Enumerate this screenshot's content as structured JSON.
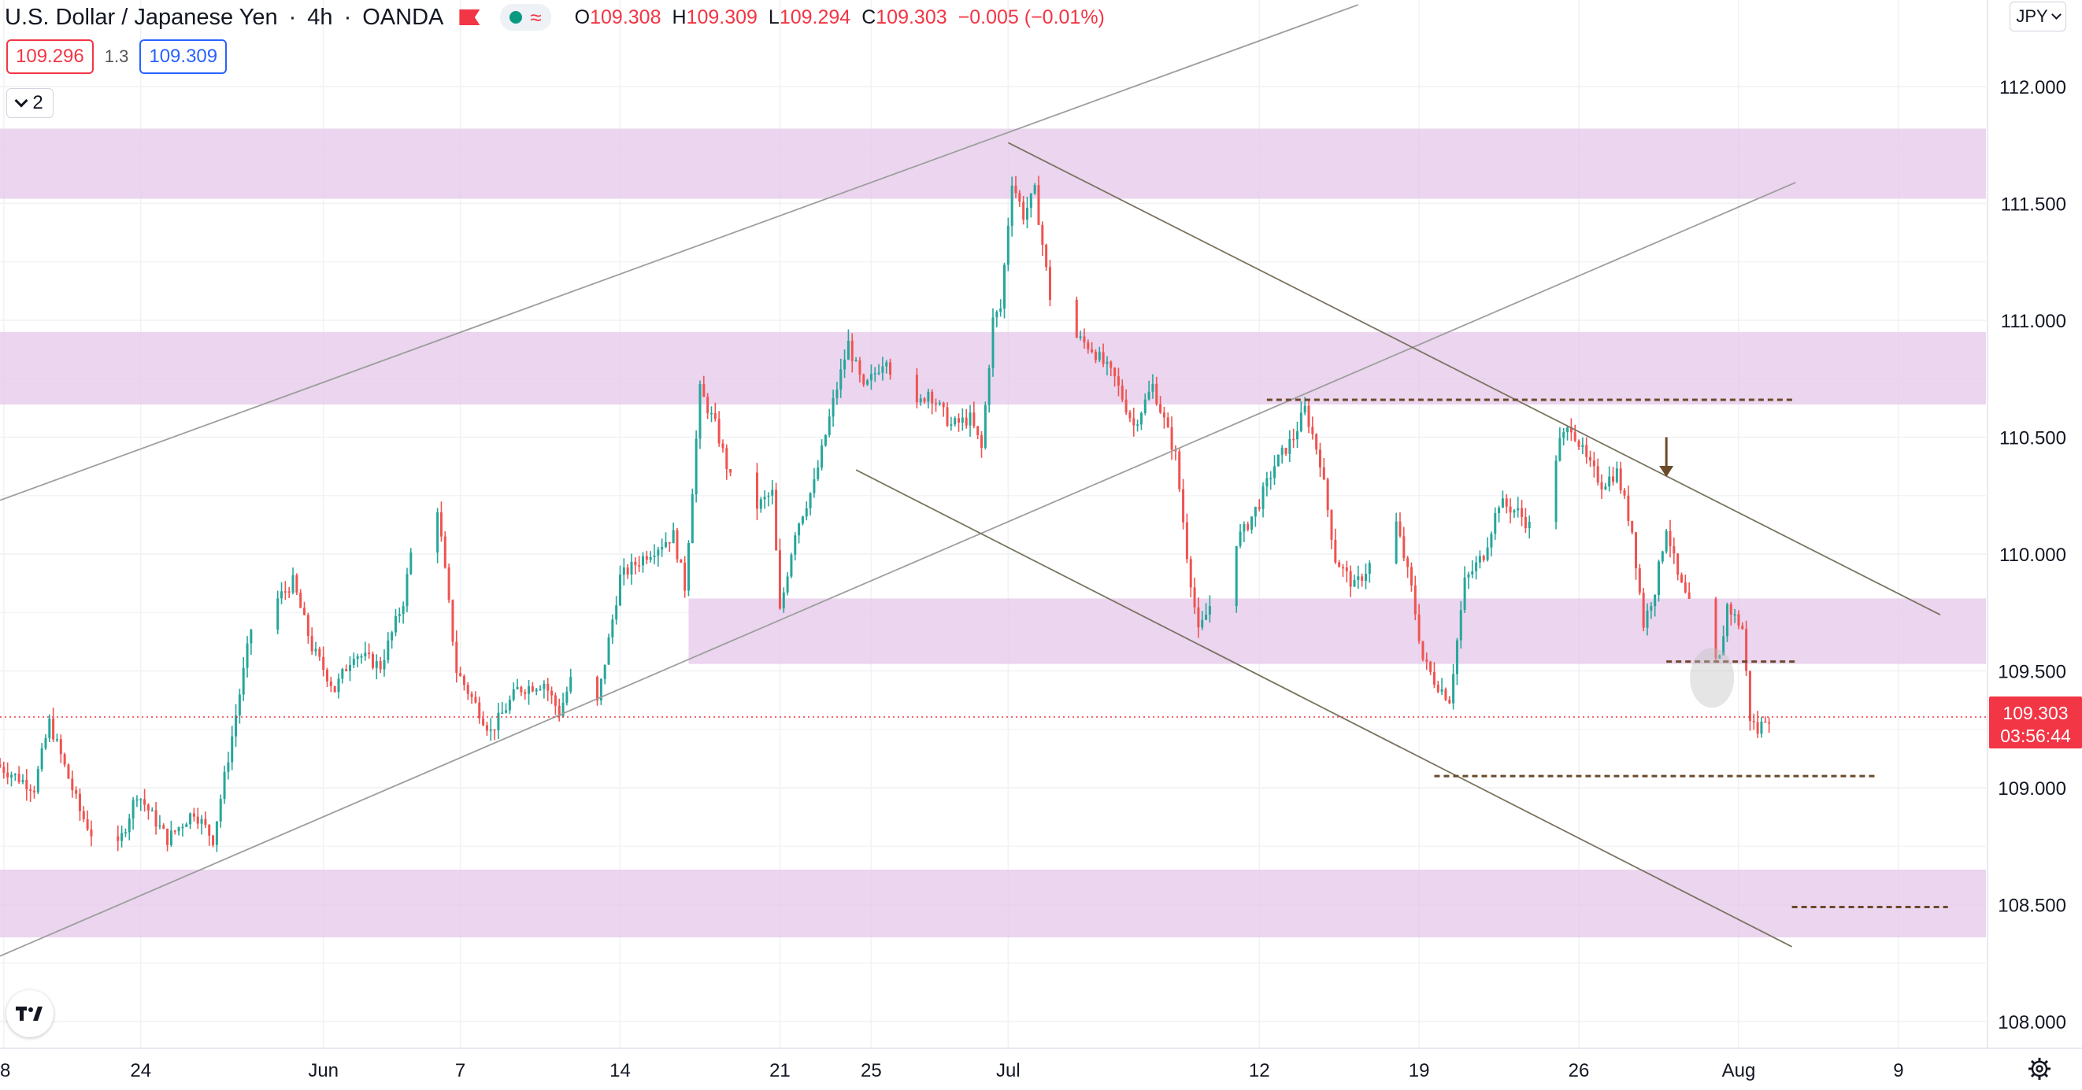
{
  "header": {
    "symbol": "U.S. Dollar / Japanese Yen",
    "interval": "4h",
    "broker": "OANDA",
    "open_label": "O",
    "open": "109.308",
    "high_label": "H",
    "high": "109.309",
    "low_label": "L",
    "low": "109.294",
    "close_label": "C",
    "close": "109.303",
    "change": "−0.005 (−0.01%)"
  },
  "quote": {
    "bid": "109.296",
    "spread": "1.3",
    "ask": "109.309"
  },
  "indicators_count": "2",
  "currency": "JPY",
  "last_price_label": {
    "price": "109.303",
    "countdown": "03:56:44"
  },
  "colors": {
    "up": "#26a69a",
    "down": "#ef5350",
    "zone": "#e6c9ea",
    "trendline": "#9e9e9e",
    "channel": "#7a7460",
    "level": "#6b4a2a",
    "last_price": "#f23645"
  },
  "chart_data": {
    "type": "candlestick",
    "title": "U.S. Dollar / Japanese Yen, 4h, OANDA",
    "ylim": [
      107.95,
      112.3
    ],
    "grid": true,
    "y_ticks": [
      "112.000",
      "111.500",
      "111.000",
      "110.500",
      "110.000",
      "109.500",
      "109.000",
      "108.500",
      "108.000"
    ],
    "x_ticks": [
      "8",
      "24",
      "Jun",
      "7",
      "14",
      "21",
      "25",
      "Jul",
      "12",
      "19",
      "26",
      "Aug",
      "9"
    ],
    "x_tick_dates": [
      "2021-05-18",
      "2021-05-24",
      "2021-06-01",
      "2021-06-07",
      "2021-06-14",
      "2021-06-21",
      "2021-06-25",
      "2021-07-01",
      "2021-07-12",
      "2021-07-19",
      "2021-07-26",
      "2021-08-02",
      "2021-08-09"
    ],
    "xlim": [
      "2021-05-17T20:00",
      "2021-08-12T20:00"
    ],
    "close_path": [
      [
        "2021-05-17T20:00",
        109.1
      ],
      [
        "2021-05-19T12:00",
        109.0
      ],
      [
        "2021-05-20T04:00",
        109.28
      ],
      [
        "2021-05-21T12:00",
        108.9
      ],
      [
        "2021-05-22T20:00",
        108.65
      ],
      [
        "2021-05-24T00:00",
        108.98
      ],
      [
        "2021-05-25T08:00",
        108.78
      ],
      [
        "2021-05-26T12:00",
        108.9
      ],
      [
        "2021-05-27T08:00",
        108.78
      ],
      [
        "2021-05-28T04:00",
        109.22
      ],
      [
        "2021-05-29T00:00",
        109.68
      ],
      [
        "2021-05-30T20:00",
        109.88
      ],
      [
        "2021-05-31T16:00",
        109.6
      ],
      [
        "2021-06-01T16:00",
        109.42
      ],
      [
        "2021-06-02T12:00",
        109.58
      ],
      [
        "2021-06-03T16:00",
        109.52
      ],
      [
        "2021-06-04T16:00",
        109.8
      ],
      [
        "2021-06-05T12:00",
        110.3
      ],
      [
        "2021-06-06T04:00",
        110.2
      ],
      [
        "2021-06-07T00:00",
        109.5
      ],
      [
        "2021-06-08T12:00",
        109.24
      ],
      [
        "2021-06-09T16:00",
        109.42
      ],
      [
        "2021-06-10T20:00",
        109.45
      ],
      [
        "2021-06-11T12:00",
        109.32
      ],
      [
        "2021-06-12T08:00",
        109.55
      ],
      [
        "2021-06-13T04:00",
        109.36
      ],
      [
        "2021-06-14T04:00",
        109.9
      ],
      [
        "2021-06-15T08:00",
        110.0
      ],
      [
        "2021-06-16T12:00",
        110.08
      ],
      [
        "2021-06-17T00:00",
        109.86
      ],
      [
        "2021-06-17T16:00",
        110.7
      ],
      [
        "2021-06-18T08:00",
        110.55
      ],
      [
        "2021-06-19T12:00",
        110.15
      ],
      [
        "2021-06-20T20:00",
        110.26
      ],
      [
        "2021-06-21T04:00",
        109.75
      ],
      [
        "2021-06-21T20:00",
        110.1
      ],
      [
        "2021-06-22T16:00",
        110.3
      ],
      [
        "2021-06-23T12:00",
        110.65
      ],
      [
        "2021-06-24T04:00",
        110.9
      ],
      [
        "2021-06-24T20:00",
        110.7
      ],
      [
        "2021-06-25T20:00",
        110.85
      ],
      [
        "2021-06-26T16:00",
        110.55
      ],
      [
        "2021-06-27T16:00",
        110.7
      ],
      [
        "2021-06-28T16:00",
        110.55
      ],
      [
        "2021-06-29T12:00",
        110.58
      ],
      [
        "2021-06-30T00:00",
        110.45
      ],
      [
        "2021-06-30T12:00",
        111.0
      ],
      [
        "2021-06-30T20:00",
        111.05
      ],
      [
        "2021-07-01T08:00",
        111.6
      ],
      [
        "2021-07-01T20:00",
        111.45
      ],
      [
        "2021-07-02T08:00",
        111.55
      ],
      [
        "2021-07-03T00:00",
        111.1
      ],
      [
        "2021-07-03T20:00",
        110.95
      ],
      [
        "2021-07-04T20:00",
        110.88
      ],
      [
        "2021-07-05T20:00",
        110.75
      ],
      [
        "2021-07-06T16:00",
        110.55
      ],
      [
        "2021-07-07T12:00",
        110.72
      ],
      [
        "2021-07-08T12:00",
        110.42
      ],
      [
        "2021-07-09T00:00",
        110.0
      ],
      [
        "2021-07-09T12:00",
        109.66
      ],
      [
        "2021-07-10T00:00",
        109.78
      ],
      [
        "2021-07-10T20:00",
        110.02
      ],
      [
        "2021-07-11T12:00",
        110.1
      ],
      [
        "2021-07-12T04:00",
        110.22
      ],
      [
        "2021-07-12T20:00",
        110.38
      ],
      [
        "2021-07-13T16:00",
        110.5
      ],
      [
        "2021-07-14T04:00",
        110.62
      ],
      [
        "2021-07-14T20:00",
        110.4
      ],
      [
        "2021-07-15T12:00",
        109.98
      ],
      [
        "2021-07-16T08:00",
        109.86
      ],
      [
        "2021-07-17T08:00",
        110.0
      ],
      [
        "2021-07-18T00:00",
        110.2
      ],
      [
        "2021-07-18T20:00",
        109.85
      ],
      [
        "2021-07-19T08:00",
        109.55
      ],
      [
        "2021-07-19T20:00",
        109.46
      ],
      [
        "2021-07-20T12:00",
        109.38
      ],
      [
        "2021-07-21T04:00",
        109.88
      ],
      [
        "2021-07-22T00:00",
        110.0
      ],
      [
        "2021-07-22T16:00",
        110.22
      ],
      [
        "2021-07-23T12:00",
        110.18
      ],
      [
        "2021-07-24T04:00",
        110.1
      ],
      [
        "2021-07-24T16:00",
        110.22
      ],
      [
        "2021-07-25T08:00",
        110.48
      ],
      [
        "2021-07-25T20:00",
        110.55
      ],
      [
        "2021-07-26T12:00",
        110.4
      ],
      [
        "2021-07-27T04:00",
        110.3
      ],
      [
        "2021-07-27T20:00",
        110.35
      ],
      [
        "2021-07-28T12:00",
        110.1
      ],
      [
        "2021-07-29T00:00",
        109.7
      ],
      [
        "2021-07-29T12:00",
        109.85
      ],
      [
        "2021-07-30T00:00",
        110.12
      ],
      [
        "2021-07-30T12:00",
        109.9
      ],
      [
        "2021-07-31T00:00",
        109.78
      ],
      [
        "2021-07-31T12:00",
        109.62
      ],
      [
        "2021-07-31T20:00",
        109.5
      ],
      [
        "2021-08-01T08:00",
        109.55
      ],
      [
        "2021-08-01T16:00",
        109.78
      ],
      [
        "2021-08-02T08:00",
        109.68
      ],
      [
        "2021-08-02T16:00",
        109.3
      ],
      [
        "2021-08-03T00:00",
        109.24
      ],
      [
        "2021-08-03T08:00",
        109.303
      ]
    ],
    "zones": [
      {
        "from": 111.52,
        "to": 111.82
      },
      {
        "from": 110.64,
        "to": 110.95
      },
      {
        "from_time": "2021-06-17T00:00",
        "from": 109.53,
        "to": 109.81
      },
      {
        "from": 108.36,
        "to": 108.65
      }
    ],
    "trendlines": [
      {
        "style": "gray",
        "from": [
          "2021-05-17T20:00",
          110.23
        ],
        "to": [
          "2021-07-16T08:00",
          112.35
        ]
      },
      {
        "style": "gray",
        "from": [
          "2021-05-17T20:00",
          108.28
        ],
        "to": [
          "2021-08-04T12:00",
          111.59
        ]
      },
      {
        "style": "brown",
        "from": [
          "2021-06-24T08:00",
          110.36
        ],
        "to": [
          "2021-08-04T08:00",
          108.32
        ]
      },
      {
        "style": "brown",
        "from": [
          "2021-07-01T00:00",
          111.76
        ],
        "to": [
          "2021-08-10T20:00",
          109.74
        ]
      }
    ],
    "levels": [
      {
        "from_time": "2021-07-12T08:00",
        "to_time": "2021-08-04T12:00",
        "y": 110.66
      },
      {
        "from_time": "2021-07-19T16:00",
        "to_time": "2021-08-08T00:00",
        "y": 109.05
      },
      {
        "from_time": "2021-07-29T20:00",
        "to_time": "2021-08-04T12:00",
        "y": 109.54
      },
      {
        "from_time": "2021-08-04T08:00",
        "to_time": "2021-08-11T04:00",
        "y": 108.49
      }
    ],
    "arrow": {
      "time": "2021-07-29T20:00",
      "from": 110.5,
      "to": 110.33
    },
    "highlight": {
      "time": "2021-07-31T20:00",
      "y": 109.47
    },
    "last_price": 109.303
  }
}
